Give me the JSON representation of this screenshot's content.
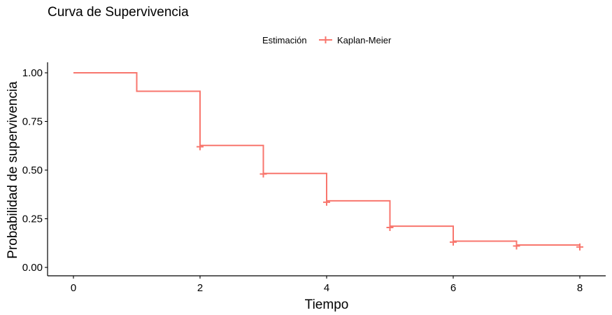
{
  "chart_data": {
    "type": "line",
    "title": "Curva de Supervivencia",
    "xlabel": "Tiempo",
    "ylabel": "Probabilidad de supervivencia",
    "xlim": [
      0,
      8
    ],
    "ylim": [
      0,
      1
    ],
    "x_ticks": [
      "0",
      "2",
      "4",
      "6",
      "8"
    ],
    "x_tick_values": [
      0,
      2,
      4,
      6,
      8
    ],
    "y_ticks": [
      "0.00",
      "0.25",
      "0.50",
      "0.75",
      "1.00"
    ],
    "y_tick_values": [
      0,
      0.25,
      0.5,
      0.75,
      1.0
    ],
    "grid": false,
    "legend": {
      "title": "Estimación",
      "position": "top",
      "entries": [
        "Kaplan-Meier"
      ]
    },
    "series": [
      {
        "name": "Kaplan-Meier",
        "color": "#F8766D",
        "step": true,
        "x": [
          0,
          1,
          2,
          3,
          4,
          5,
          6,
          7,
          8
        ],
        "y": [
          1.0,
          0.905,
          0.627,
          0.483,
          0.342,
          0.212,
          0.135,
          0.115,
          0.115
        ],
        "censored_x": [
          2,
          3,
          4,
          5,
          6,
          7,
          8
        ],
        "censored_y": [
          0.62,
          0.48,
          0.335,
          0.205,
          0.13,
          0.11,
          0.105
        ]
      }
    ]
  }
}
